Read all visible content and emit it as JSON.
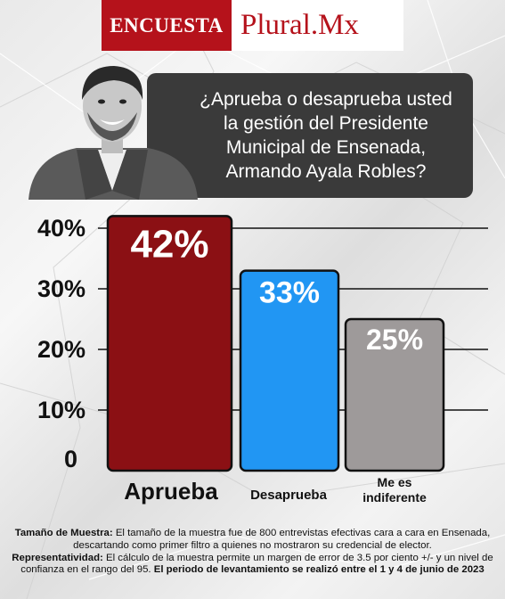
{
  "header": {
    "brand_left": "ENCUESTA",
    "brand_right": "Plural.Mx"
  },
  "question": {
    "line1": "¿Aprueba o desaprueba usted",
    "line2": "la gestión del Presidente",
    "line3": "Municipal de Ensenada,",
    "line4": "Armando Ayala Robles?"
  },
  "colors": {
    "brand_red": "#b5121b",
    "aprueba": "#8b1014",
    "desaprueba": "#2196f3",
    "indiferente": "#9e9a9a",
    "box": "#3a3a3a"
  },
  "chart_data": {
    "type": "bar",
    "categories": [
      "Aprueba",
      "Desaprueba",
      "Me es indiferente"
    ],
    "category_lines": [
      [
        "Aprueba"
      ],
      [
        "Desaprueba"
      ],
      [
        "Me es",
        "indiferente"
      ]
    ],
    "values": [
      42,
      33,
      25
    ],
    "value_labels": [
      "42%",
      "33%",
      "25%"
    ],
    "yticks": [
      0,
      10,
      20,
      30,
      40
    ],
    "ytick_labels": [
      "0",
      "10%",
      "20%",
      "30%",
      "40%"
    ],
    "ylim": [
      0,
      40
    ],
    "grid": true
  },
  "footnote": {
    "sample_label": "Tamaño de Muestra:",
    "sample_text": "El tamaño de la muestra fue de 800 entrevistas efectivas cara a cara en Ensenada, descartando como primer filtro a quienes no mostraron su credencial de elector.",
    "repr_label": "Representatividad:",
    "repr_text": "El cálculo de la muestra permite un margen de error de 3.5 por ciento +/- y un nivel de confianza en el rango del 95.",
    "period_text": "El periodo de levantamiento se realizó entre el 1 y 4 de junio de 2023"
  }
}
